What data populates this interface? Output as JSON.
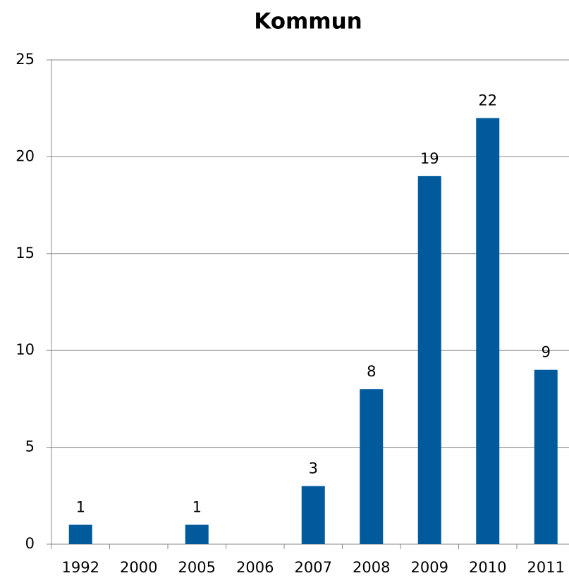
{
  "chart_data": {
    "type": "bar",
    "title": "Kommun",
    "categories": [
      "1992",
      "2000",
      "2005",
      "2006",
      "2007",
      "2008",
      "2009",
      "2010",
      "2011"
    ],
    "values": [
      1,
      null,
      1,
      null,
      3,
      8,
      19,
      22,
      9
    ],
    "color": "#005a9c",
    "ylim": [
      0,
      25
    ],
    "yticks": [
      0,
      5,
      10,
      15,
      20,
      25
    ],
    "grid": true
  }
}
